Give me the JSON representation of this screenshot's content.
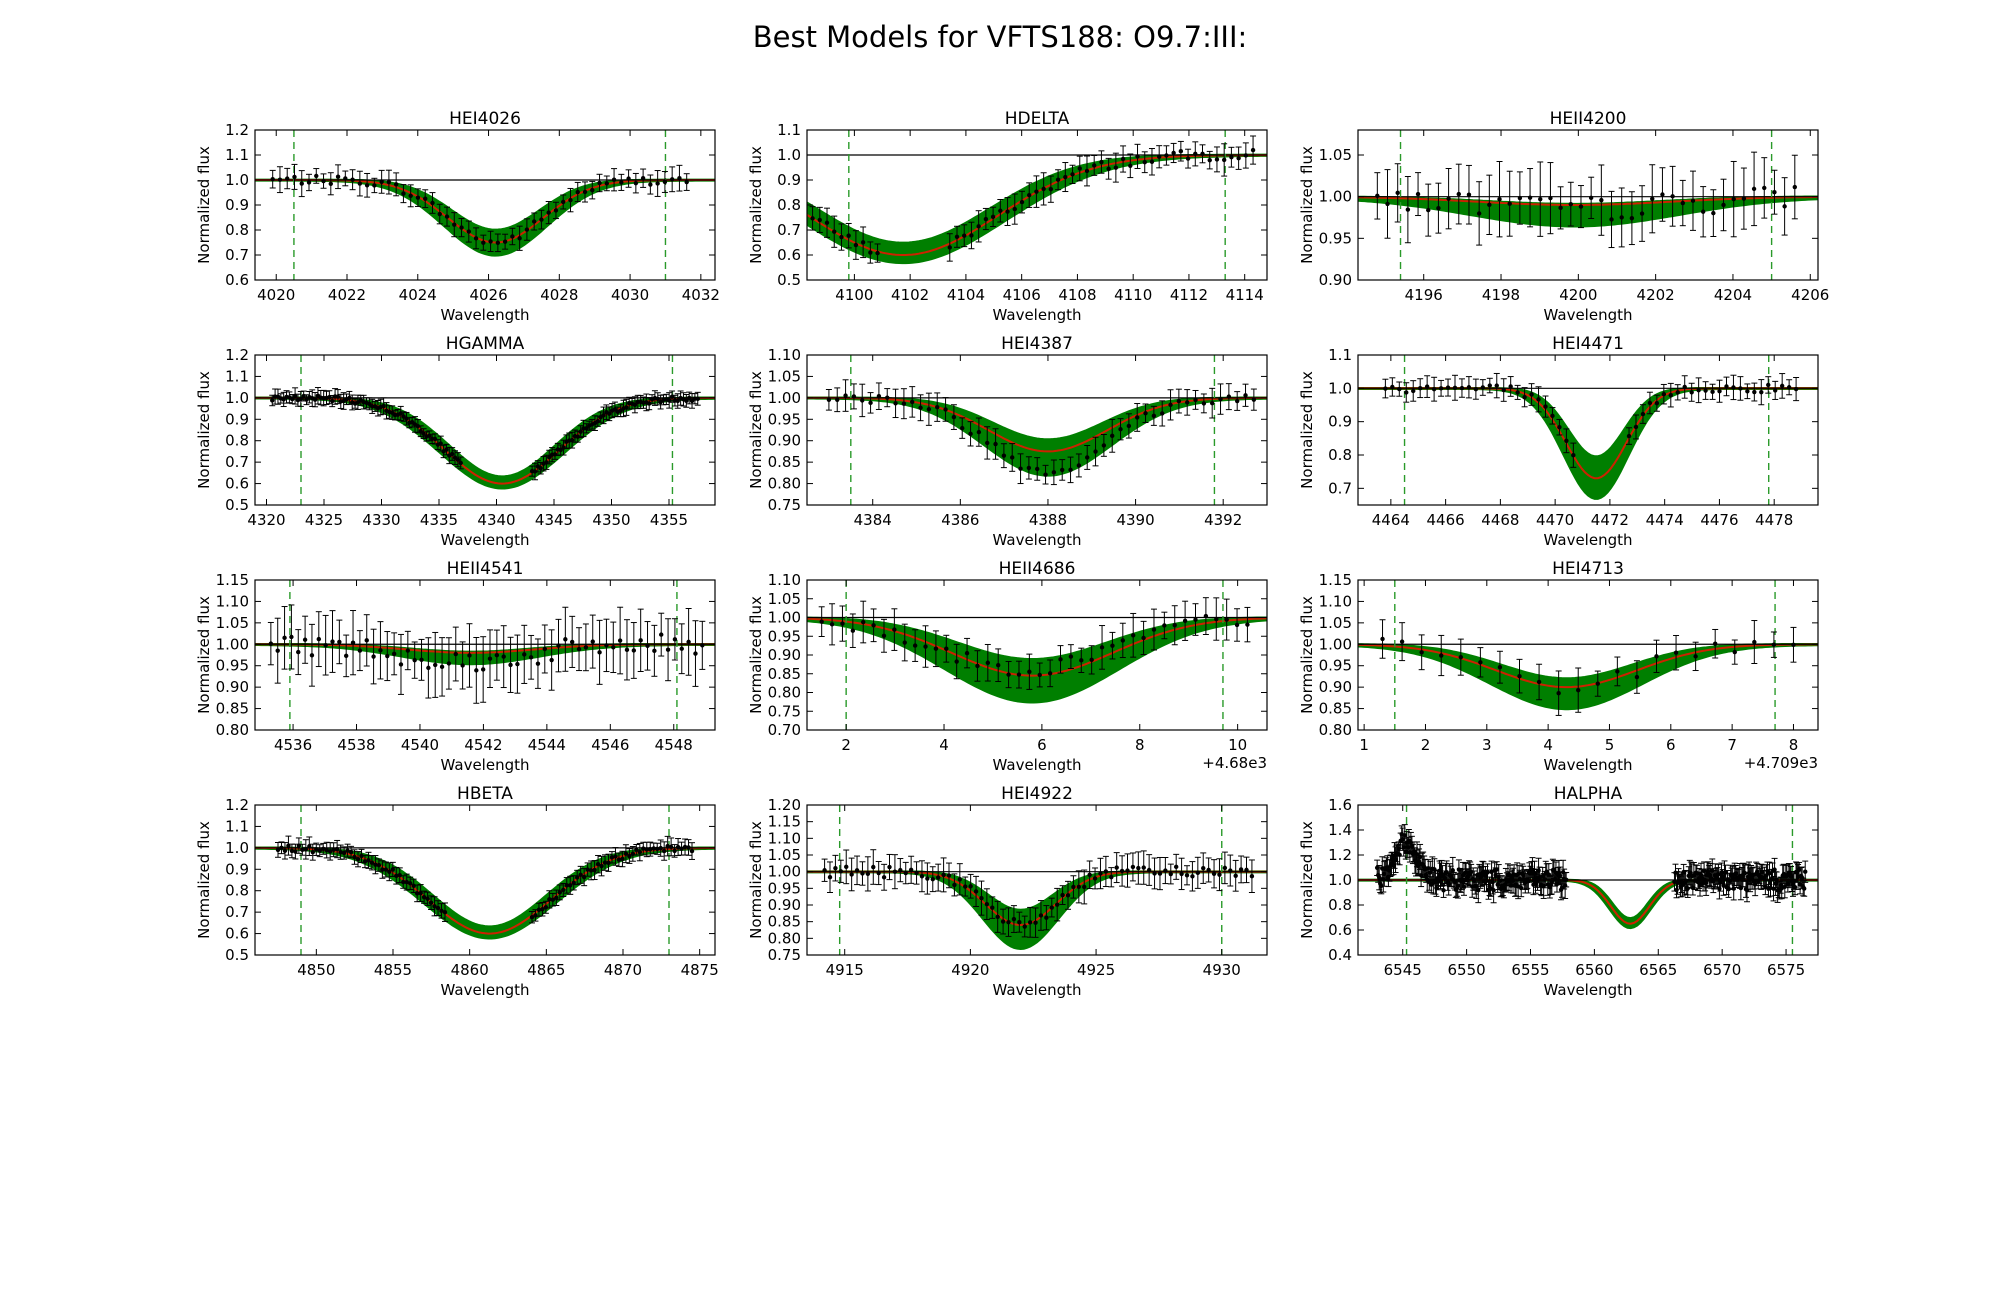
{
  "title": "Best Models for VFTS188: O9.7:III:",
  "colors": {
    "model_band": "#007f00",
    "best_model": "#cc2200",
    "data": "#000000",
    "window_lines": "#2a9a2a",
    "continuum": "#000000"
  },
  "chart_data": [
    {
      "type": "line",
      "title": "HEI4026",
      "xlabel": "Wavelength",
      "ylabel": "Normalized flux",
      "xlim": [
        4019.4,
        4032.4
      ],
      "ylim": [
        0.6,
        1.2
      ],
      "xticks": [
        4020,
        4022,
        4024,
        4026,
        4028,
        4030,
        4032
      ],
      "yticks": [
        0.6,
        0.7,
        0.8,
        0.9,
        1.0,
        1.1,
        1.2
      ],
      "window": [
        4020.5,
        4031.0
      ],
      "line": {
        "center": 4026.2,
        "depth": 0.25,
        "sigma": 1.35,
        "spread": 0.05
      },
      "observed": {
        "x_range": [
          4019.9,
          4031.6
        ],
        "n": 58,
        "err": 0.04,
        "center": 4026.2,
        "depth": 0.25,
        "sigma": 1.35
      }
    },
    {
      "type": "line",
      "title": "HDELTA",
      "xlabel": "Wavelength",
      "ylabel": "Normalized flux",
      "xlim": [
        4098.3,
        4114.8
      ],
      "ylim": [
        0.5,
        1.1
      ],
      "xticks": [
        4100,
        4102,
        4104,
        4106,
        4108,
        4110,
        4112,
        4114
      ],
      "yticks": [
        0.5,
        0.6,
        0.7,
        0.8,
        0.9,
        1.0,
        1.1
      ],
      "window": [
        4099.8,
        4113.3
      ],
      "line": {
        "center": 4101.75,
        "depth": 0.4,
        "sigma": 3.4,
        "spread": 0.03
      },
      "observed": {
        "x_range": [
          4098.5,
          4114.3
        ],
        "n": 62,
        "err": 0.05,
        "center": 4101.75,
        "depth": 0.4,
        "sigma": 3.4,
        "skip": [
          4101.0,
          4103.2
        ]
      }
    },
    {
      "type": "line",
      "title": "HEII4200",
      "xlabel": "Wavelength",
      "ylabel": "Normalized flux",
      "xlim": [
        4194.3,
        4206.2
      ],
      "ylim": [
        0.9,
        1.08
      ],
      "xticks": [
        4196,
        4198,
        4200,
        4202,
        4204,
        4206
      ],
      "yticks": [
        0.9,
        0.95,
        1.0,
        1.05
      ],
      "ytick_labels": [
        "0.90",
        "0.95",
        "1.00",
        "1.05"
      ],
      "window": [
        4195.4,
        4205.0
      ],
      "line": {
        "center": 4199.9,
        "depth": 0.01,
        "sigma": 2.5,
        "spread": 0.025
      },
      "observed": {
        "x_range": [
          4194.8,
          4205.6
        ],
        "n": 42,
        "err": 0.035,
        "center": 4199.9,
        "depth": 0.015,
        "sigma": 2.5
      }
    },
    {
      "type": "line",
      "title": "HGAMMA",
      "xlabel": "Wavelength",
      "ylabel": "Normalized flux",
      "xlim": [
        4319.0,
        4359.0
      ],
      "ylim": [
        0.5,
        1.2
      ],
      "xticks": [
        4320,
        4325,
        4330,
        4335,
        4340,
        4345,
        4350,
        4355
      ],
      "yticks": [
        0.5,
        0.6,
        0.7,
        0.8,
        0.9,
        1.0,
        1.1,
        1.2
      ],
      "window": [
        4323.0,
        4355.3
      ],
      "line": {
        "center": 4340.5,
        "depth": 0.4,
        "sigma": 5.0,
        "spread": 0.02
      },
      "observed": {
        "x_range": [
          4320.5,
          4357.5
        ],
        "n": 150,
        "err": 0.03,
        "center": 4340.5,
        "depth": 0.4,
        "sigma": 5.0,
        "skip": [
          4337.0,
          4343.0
        ]
      }
    },
    {
      "type": "line",
      "title": "HEI4387",
      "xlabel": "Wavelength",
      "ylabel": "Normalized flux",
      "xlim": [
        4382.5,
        4393.0
      ],
      "ylim": [
        0.75,
        1.1
      ],
      "xticks": [
        4384,
        4386,
        4388,
        4390,
        4392
      ],
      "yticks": [
        0.75,
        0.8,
        0.85,
        0.9,
        0.95,
        1.0,
        1.05,
        1.1
      ],
      "ytick_labels": [
        "0.75",
        "0.80",
        "0.85",
        "0.90",
        "0.95",
        "1.00",
        "1.05",
        "1.10"
      ],
      "window": [
        4383.5,
        4391.8
      ],
      "line": {
        "center": 4388.0,
        "depth": 0.125,
        "sigma": 1.35,
        "spread": 0.055
      },
      "observed": {
        "x_range": [
          4383.0,
          4392.7
        ],
        "n": 52,
        "err": 0.03,
        "center": 4388.0,
        "depth": 0.17,
        "sigma": 1.35
      }
    },
    {
      "type": "line",
      "title": "HEI4471",
      "xlabel": "Wavelength",
      "ylabel": "Normalized flux",
      "xlim": [
        4462.8,
        4479.6
      ],
      "ylim": [
        0.65,
        1.1
      ],
      "xticks": [
        4464,
        4466,
        4468,
        4470,
        4472,
        4474,
        4476,
        4478
      ],
      "yticks": [
        0.7,
        0.8,
        0.9,
        1.0,
        1.1
      ],
      "window": [
        4464.5,
        4477.8
      ],
      "line": {
        "center": 4471.5,
        "depth": 0.27,
        "sigma": 1.1,
        "spread": 0.06
      },
      "observed": {
        "x_range": [
          4463.8,
          4478.8
        ],
        "n": 60,
        "err": 0.03,
        "center": 4471.5,
        "depth": 0.27,
        "sigma": 1.1,
        "skip": [
          4470.8,
          4472.6
        ]
      }
    },
    {
      "type": "line",
      "title": "HEII4541",
      "xlabel": "Wavelength",
      "ylabel": "Normalized flux",
      "xlim": [
        4534.8,
        4549.3
      ],
      "ylim": [
        0.8,
        1.15
      ],
      "xticks": [
        4536,
        4538,
        4540,
        4542,
        4544,
        4546,
        4548
      ],
      "yticks": [
        0.8,
        0.85,
        0.9,
        0.95,
        1.0,
        1.05,
        1.1,
        1.15
      ],
      "ytick_labels": [
        "0.80",
        "0.85",
        "0.90",
        "0.95",
        "1.00",
        "1.05",
        "1.10",
        "1.15"
      ],
      "window": [
        4535.9,
        4548.1
      ],
      "line": {
        "center": 4541.6,
        "depth": 0.02,
        "sigma": 2.0,
        "spread": 0.025
      },
      "observed": {
        "x_range": [
          4535.3,
          4548.9
        ],
        "n": 64,
        "err": 0.06,
        "center": 4541.6,
        "depth": 0.04,
        "sigma": 2.0
      }
    },
    {
      "type": "line",
      "title": "HEII4686",
      "xlabel": "Wavelength",
      "ylabel": "Normalized flux",
      "offset_label": "+4.68e3",
      "xlim": [
        1.2,
        10.6
      ],
      "ylim": [
        0.7,
        1.1
      ],
      "xticks": [
        2,
        4,
        6,
        8,
        10
      ],
      "yticks": [
        0.7,
        0.75,
        0.8,
        0.85,
        0.9,
        0.95,
        1.0,
        1.05,
        1.1
      ],
      "ytick_labels": [
        "0.70",
        "0.75",
        "0.80",
        "0.85",
        "0.90",
        "0.95",
        "1.00",
        "1.05",
        "1.10"
      ],
      "window": [
        2.0,
        9.7
      ],
      "line": {
        "center": 5.8,
        "depth": 0.155,
        "sigma": 1.65,
        "spread": 0.07
      },
      "observed": {
        "x_range": [
          1.5,
          10.2
        ],
        "n": 42,
        "err": 0.045,
        "center": 5.6,
        "depth": 0.14,
        "sigma": 1.7
      }
    },
    {
      "type": "line",
      "title": "HEI4713",
      "xlabel": "Wavelength",
      "ylabel": "Normalized flux",
      "offset_label": "+4.709e3",
      "xlim": [
        0.9,
        8.4
      ],
      "ylim": [
        0.8,
        1.15
      ],
      "xticks": [
        1,
        2,
        3,
        4,
        5,
        6,
        7,
        8
      ],
      "yticks": [
        0.8,
        0.85,
        0.9,
        0.95,
        1.0,
        1.05,
        1.1,
        1.15
      ],
      "ytick_labels": [
        "0.80",
        "0.85",
        "0.90",
        "0.95",
        "1.00",
        "1.05",
        "1.10",
        "1.15"
      ],
      "window": [
        1.5,
        7.7
      ],
      "line": {
        "center": 4.3,
        "depth": 0.1,
        "sigma": 1.15,
        "spread": 0.05
      },
      "observed": {
        "x_range": [
          1.3,
          8.0
        ],
        "n": 22,
        "err": 0.04,
        "center": 4.3,
        "depth": 0.1,
        "sigma": 1.15
      }
    },
    {
      "type": "line",
      "title": "HBETA",
      "xlabel": "Wavelength",
      "ylabel": "Normalized flux",
      "xlim": [
        4846.0,
        4876.0
      ],
      "ylim": [
        0.5,
        1.2
      ],
      "xticks": [
        4850,
        4855,
        4860,
        4865,
        4870,
        4875
      ],
      "yticks": [
        0.5,
        0.6,
        0.7,
        0.8,
        0.9,
        1.0,
        1.1,
        1.2
      ],
      "window": [
        4849.0,
        4873.0
      ],
      "line": {
        "center": 4861.3,
        "depth": 0.4,
        "sigma": 4.0,
        "spread": 0.02
      },
      "observed": {
        "x_range": [
          4847.5,
          4874.5
        ],
        "n": 120,
        "err": 0.035,
        "center": 4861.3,
        "depth": 0.4,
        "sigma": 4.0,
        "skip": [
          4858.5,
          4864.0
        ]
      }
    },
    {
      "type": "line",
      "title": "HEI4922",
      "xlabel": "Wavelength",
      "ylabel": "Normalized flux",
      "xlim": [
        4913.5,
        4931.8
      ],
      "ylim": [
        0.75,
        1.2
      ],
      "xticks": [
        4915,
        4920,
        4925,
        4930
      ],
      "yticks": [
        0.75,
        0.8,
        0.85,
        0.9,
        0.95,
        1.0,
        1.05,
        1.1,
        1.15,
        1.2
      ],
      "ytick_labels": [
        "0.75",
        "0.80",
        "0.85",
        "0.90",
        "0.95",
        "1.00",
        "1.05",
        "1.10",
        "1.15",
        "1.20"
      ],
      "window": [
        4914.8,
        4930.0
      ],
      "line": {
        "center": 4922.0,
        "depth": 0.16,
        "sigma": 1.4,
        "spread": 0.07
      },
      "observed": {
        "x_range": [
          4914.2,
          4931.2
        ],
        "n": 80,
        "err": 0.04,
        "center": 4922.0,
        "depth": 0.16,
        "sigma": 1.4
      }
    },
    {
      "type": "line",
      "title": "HALPHA",
      "xlabel": "Wavelength",
      "ylabel": "Normalized flux",
      "xlim": [
        6541.5,
        6577.5
      ],
      "ylim": [
        0.4,
        1.6
      ],
      "xticks": [
        6545,
        6550,
        6555,
        6560,
        6565,
        6570,
        6575
      ],
      "yticks": [
        0.4,
        0.6,
        0.8,
        1.0,
        1.2,
        1.4,
        1.6
      ],
      "window": [
        6545.3,
        6575.5
      ],
      "line": {
        "center": 6562.8,
        "depth": 0.35,
        "sigma": 1.5,
        "spread": 0.03
      },
      "observed": {
        "x_range": [
          6543.0,
          6576.5
        ],
        "n": 420,
        "err": 0.08,
        "center": 6562.8,
        "depth": 0.0,
        "sigma": 1.5,
        "skip": [
          6557.8,
          6566.2
        ],
        "emission": {
          "center": 6545.2,
          "height": 0.3,
          "sigma": 0.9
        },
        "scatter": 0.12
      }
    }
  ]
}
